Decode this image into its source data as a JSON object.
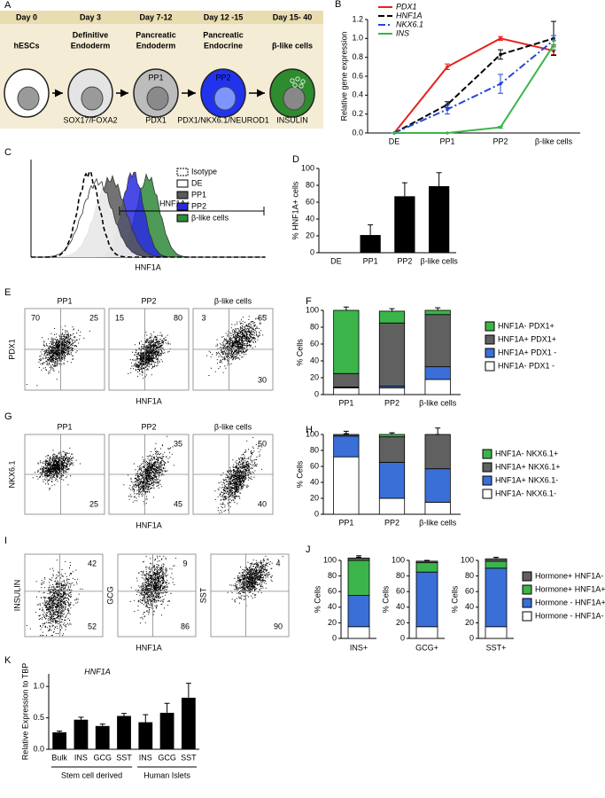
{
  "panel_A": {
    "label": "A",
    "stages": [
      {
        "day": "Day 0",
        "name": [
          "hESCs"
        ]
      },
      {
        "day": "Day 3",
        "name": [
          "Definitive",
          "Endoderm"
        ],
        "marker": "SOX17/FOXA2"
      },
      {
        "day": "Day 7-12",
        "name": [
          "Pancreatic",
          "Endoderm"
        ],
        "cell": "PP1",
        "marker": "PDX1"
      },
      {
        "day": "Day 12 -15",
        "name": [
          "Pancreatic",
          "Endocrine"
        ],
        "cell": "PP2",
        "marker": "PDX1/NKX6.1/NEUROD1"
      },
      {
        "day": "Day 15- 40",
        "name": [
          "β-like cells"
        ],
        "marker": "INSULIN"
      }
    ]
  },
  "panel_C": {
    "label": "C",
    "xlabel": "HNF1A",
    "gate_label": "HNF1A+",
    "series": [
      {
        "name": "Isotype",
        "color": "none",
        "linestyle": "dashed"
      },
      {
        "name": "DE",
        "color": "#ffffff",
        "linestyle": "solid"
      },
      {
        "name": "PP1",
        "color": "#5a5a5a",
        "linestyle": "solid"
      },
      {
        "name": "PP2",
        "color": "#2a2ae0",
        "linestyle": "solid"
      },
      {
        "name": "β-like cells",
        "color": "#2f8a3a",
        "linestyle": "solid"
      }
    ]
  },
  "flow_panels": [
    {
      "label": "E",
      "ylabel": "PDX1",
      "xlabel": "HNF1A",
      "plots": [
        {
          "title": "PP1",
          "quadrants": [
            {
              "position": "upper-left",
              "value": 70
            },
            {
              "position": "upper-right",
              "value": 25
            }
          ]
        },
        {
          "title": "PP2",
          "quadrants": [
            {
              "position": "upper-left",
              "value": 15
            },
            {
              "position": "upper-right",
              "value": 80
            }
          ]
        },
        {
          "title": "β-like cells",
          "quadrants": [
            {
              "position": "upper-left",
              "value": 3
            },
            {
              "position": "upper-right",
              "value": 65
            },
            {
              "position": "lower-right",
              "value": 30
            }
          ]
        }
      ]
    },
    {
      "label": "G",
      "ylabel": "NKX6.1",
      "xlabel": "HNF1A",
      "plots": [
        {
          "title": "PP1",
          "quadrants": [
            {
              "position": "lower-right",
              "value": 25
            }
          ]
        },
        {
          "title": "PP2",
          "quadrants": [
            {
              "position": "upper-right",
              "value": 35
            },
            {
              "position": "lower-right",
              "value": 45
            }
          ]
        },
        {
          "title": "β-like cells",
          "quadrants": [
            {
              "position": "upper-right",
              "value": 50
            },
            {
              "position": "lower-right",
              "value": 40
            }
          ]
        }
      ]
    },
    {
      "label": "I",
      "xlabel": "HNF1A",
      "plots": [
        {
          "ylabel": "INSULIN",
          "quadrants": [
            {
              "position": "upper-right",
              "value": 42
            },
            {
              "position": "lower-right",
              "value": 52
            }
          ]
        },
        {
          "ylabel": "GCG",
          "quadrants": [
            {
              "position": "upper-right",
              "value": 9
            },
            {
              "position": "lower-right",
              "value": 86
            }
          ]
        },
        {
          "ylabel": "SST",
          "quadrants": [
            {
              "position": "upper-right",
              "value": 4
            },
            {
              "position": "lower-right",
              "value": 90
            }
          ]
        }
      ]
    }
  ],
  "chart_data": [
    {
      "label": "B",
      "type": "line",
      "ylabel": "Relative gene expression",
      "categories": [
        "DE",
        "PP1",
        "PP2",
        "β-like cells"
      ],
      "ylim": [
        0,
        1.2
      ],
      "yticks": [
        {
          "value": 0,
          "label": "0.0"
        },
        0.2,
        0.4,
        0.6,
        0.8,
        {
          "value": 1,
          "label": "1.0"
        },
        1.2
      ],
      "legend": "upper left",
      "series": [
        {
          "name": "PDX1",
          "color": "#e8231c",
          "linestyle": "solid",
          "values": [
            0,
            0.7,
            1.0,
            0.87
          ],
          "errors": [
            0,
            0.03,
            0.02,
            0.04
          ]
        },
        {
          "name": "HNF1A",
          "color": "#000000",
          "linestyle": "dashed",
          "values": [
            0,
            0.3,
            0.83,
            1.0
          ],
          "errors": [
            0,
            0.03,
            0.05,
            0.18
          ]
        },
        {
          "name": "NKX6.1",
          "color": "#2447d8",
          "linestyle": "dashdot",
          "values": [
            0,
            0.25,
            0.52,
            0.98
          ],
          "errors": [
            0,
            0.05,
            0.1,
            0.05
          ]
        },
        {
          "name": "INS",
          "color": "#3bb54a",
          "linestyle": "solid",
          "values": [
            0,
            0,
            0.06,
            0.93
          ],
          "errors": [
            0,
            0,
            0.01,
            0.05
          ]
        }
      ]
    },
    {
      "label": "D",
      "type": "bar",
      "ylabel": "% HNF1A+ cells",
      "categories": [
        "DE",
        "PP1",
        "PP2",
        "β-like cells"
      ],
      "values": [
        0,
        21,
        67,
        79
      ],
      "errors": [
        0,
        12,
        16,
        16
      ],
      "color": "#000000",
      "ylim": [
        0,
        100
      ],
      "yticks": [
        0,
        20,
        40,
        60,
        80,
        100
      ]
    },
    {
      "label": "F",
      "type": "stacked_bar",
      "ylabel": "% Cells",
      "categories": [
        "PP1",
        "PP2",
        "β-like cells"
      ],
      "ylim": [
        0,
        100
      ],
      "yticks": [
        0,
        20,
        40,
        60,
        80,
        100
      ],
      "legend": "right",
      "series": [
        {
          "name": "HNF1A-  PDX1 -",
          "color": "#ffffff",
          "values": [
            8,
            8,
            18
          ],
          "errors": [
            2,
            1,
            3
          ]
        },
        {
          "name": "HNF1A+ PDX1 -",
          "color": "#3a6fd8",
          "values": [
            1,
            2,
            15
          ],
          "errors": [
            0,
            1,
            5
          ]
        },
        {
          "name": "HNF1A+ PDX1+",
          "color": "#606060",
          "values": [
            16,
            75,
            62
          ],
          "errors": [
            4,
            3,
            3
          ]
        },
        {
          "name": "HNF1A- PDX1+",
          "color": "#3bb54a",
          "values": [
            75,
            14,
            5
          ],
          "errors": [
            4,
            3,
            3
          ]
        }
      ]
    },
    {
      "label": "H",
      "type": "stacked_bar",
      "ylabel": "% Cells",
      "categories": [
        "PP1",
        "PP2",
        "β-like cells"
      ],
      "ylim": [
        0,
        100
      ],
      "yticks": [
        0,
        20,
        40,
        60,
        80,
        100
      ],
      "legend": "right",
      "series": [
        {
          "name": "HNF1A-  NKX6.1-",
          "color": "#ffffff",
          "values": [
            72,
            20,
            15
          ],
          "errors": [
            8,
            8,
            8
          ]
        },
        {
          "name": "HNF1A+ NKX6.1-",
          "color": "#3a6fd8",
          "values": [
            26,
            45,
            42
          ],
          "errors": [
            3,
            5,
            18
          ]
        },
        {
          "name": "HNF1A+  NKX6.1+",
          "color": "#606060",
          "values": [
            2,
            32,
            43
          ],
          "errors": [
            4,
            5,
            8
          ]
        },
        {
          "name": "HNF1A-  NKX6.1+",
          "color": "#3bb54a",
          "values": [
            0,
            3,
            0
          ],
          "errors": [
            0,
            2,
            0
          ]
        }
      ]
    },
    {
      "label": "J",
      "type": "stacked_bar",
      "facets": true,
      "ylabel": "% Cells",
      "categories": [
        "INS+",
        "GCG+",
        "SST+"
      ],
      "ylim": [
        0,
        100
      ],
      "yticks": [
        0,
        20,
        40,
        60,
        80,
        100
      ],
      "legend": "right",
      "series": [
        {
          "name": "Hormone - HNF1A-",
          "color": "#ffffff",
          "values": [
            15,
            15,
            15
          ],
          "errors": [
            8,
            8,
            8
          ]
        },
        {
          "name": "Hormone - HNF1A+",
          "color": "#3a6fd8",
          "values": [
            40,
            70,
            75
          ],
          "errors": [
            8,
            3,
            3
          ]
        },
        {
          "name": "Hormone+ HNF1A+",
          "color": "#3bb54a",
          "values": [
            45,
            12,
            9
          ],
          "errors": [
            4,
            2,
            3
          ]
        },
        {
          "name": "Hormone+ HNF1A-",
          "color": "#606060",
          "values": [
            3,
            2,
            3
          ],
          "errors": [
            3,
            1,
            2
          ]
        }
      ]
    },
    {
      "label": "K",
      "type": "grouped_bar",
      "title": "HNF1A",
      "ylabel": "Relative Expression to TBP",
      "color": "#000000",
      "ylim": [
        0,
        1.2
      ],
      "yticks": [
        {
          "value": 0,
          "label": "0.0"
        },
        0.5,
        {
          "value": 1,
          "label": "1.0"
        }
      ],
      "groups": [
        {
          "name": "Stem cell derived",
          "categories": [
            "Bulk",
            "INS",
            "GCG",
            "SST"
          ],
          "values": [
            0.27,
            0.47,
            0.37,
            0.53
          ],
          "errors": [
            0.02,
            0.04,
            0.03,
            0.04
          ]
        },
        {
          "name": "Human Islets",
          "categories": [
            "INS",
            "GCG",
            "SST"
          ],
          "values": [
            0.43,
            0.58,
            0.82
          ],
          "errors": [
            0.12,
            0.15,
            0.23
          ]
        }
      ]
    }
  ]
}
